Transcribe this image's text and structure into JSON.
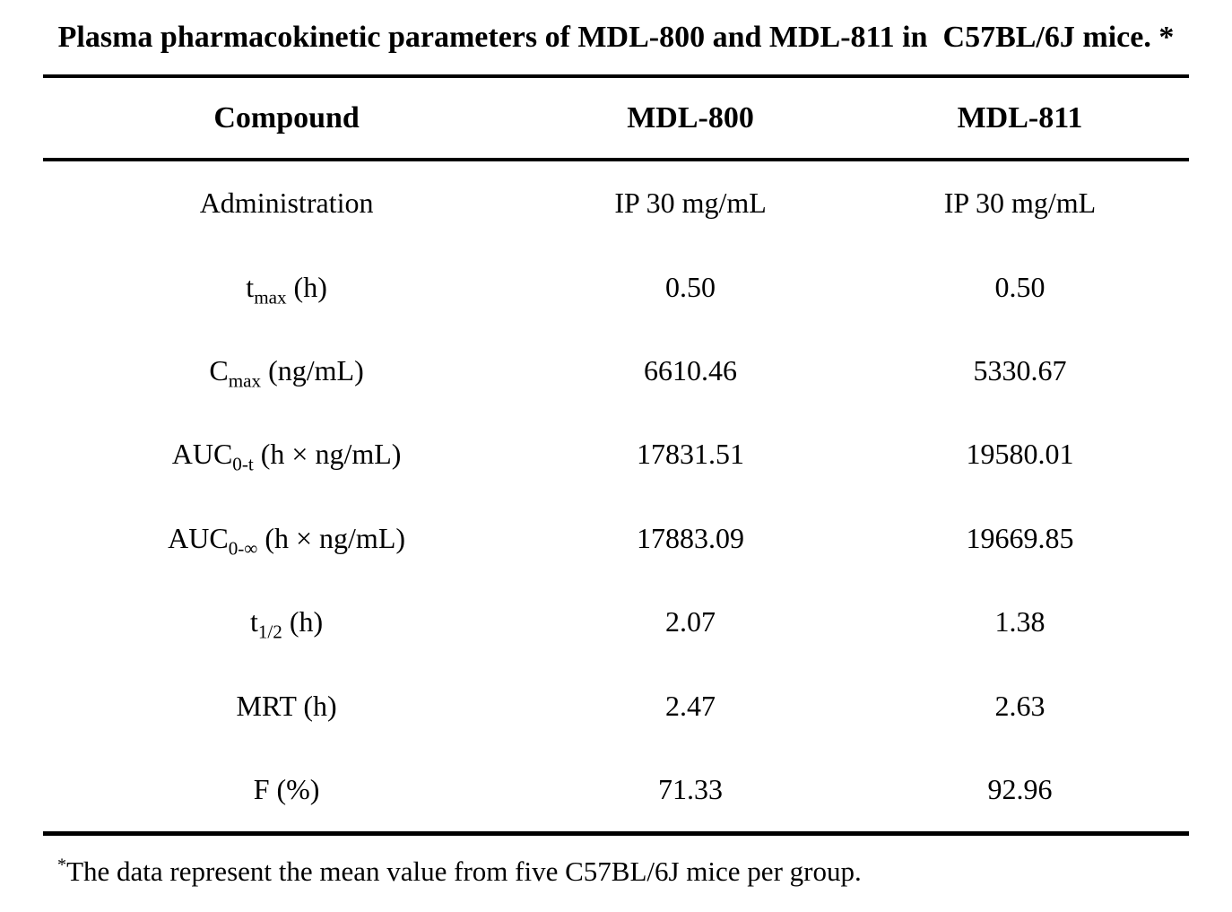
{
  "title": "Plasma pharmacokinetic parameters of MDL-800 and MDL-811 in  C57BL/6J mice. *",
  "table": {
    "header": {
      "compound": "Compound",
      "mdl800": "MDL-800",
      "mdl811": "MDL-811"
    },
    "rows": [
      {
        "label": {
          "base": "Administration",
          "sub": "",
          "rest": ""
        },
        "mdl800": "IP 30 mg/mL",
        "mdl811": "IP 30 mg/mL"
      },
      {
        "label": {
          "base": "t",
          "sub": "max",
          "rest": " (h)"
        },
        "mdl800": "0.50",
        "mdl811": "0.50"
      },
      {
        "label": {
          "base": "C",
          "sub": "max",
          "rest": " (ng/mL)"
        },
        "mdl800": "6610.46",
        "mdl811": "5330.67"
      },
      {
        "label": {
          "base": "AUC",
          "sub": "0-t",
          "rest": " (h × ng/mL)"
        },
        "mdl800": "17831.51",
        "mdl811": "19580.01"
      },
      {
        "label": {
          "base": "AUC",
          "sub": "0-∞",
          "rest": " (h × ng/mL)"
        },
        "mdl800": "17883.09",
        "mdl811": "19669.85"
      },
      {
        "label": {
          "base": "t",
          "sub": "1/2",
          "rest": " (h)"
        },
        "mdl800": "2.07",
        "mdl811": "1.38"
      },
      {
        "label": {
          "base": "MRT (h)",
          "sub": "",
          "rest": ""
        },
        "mdl800": "2.47",
        "mdl811": "2.63"
      },
      {
        "label": {
          "base": "F (%)",
          "sub": "",
          "rest": ""
        },
        "mdl800": "71.33",
        "mdl811": "92.96"
      }
    ]
  },
  "footnote": {
    "marker": "*",
    "text": "The data represent the mean value from five C57BL/6J mice per group."
  },
  "colors": {
    "text": "#000000",
    "background": "#ffffff",
    "rule": "#000000"
  }
}
